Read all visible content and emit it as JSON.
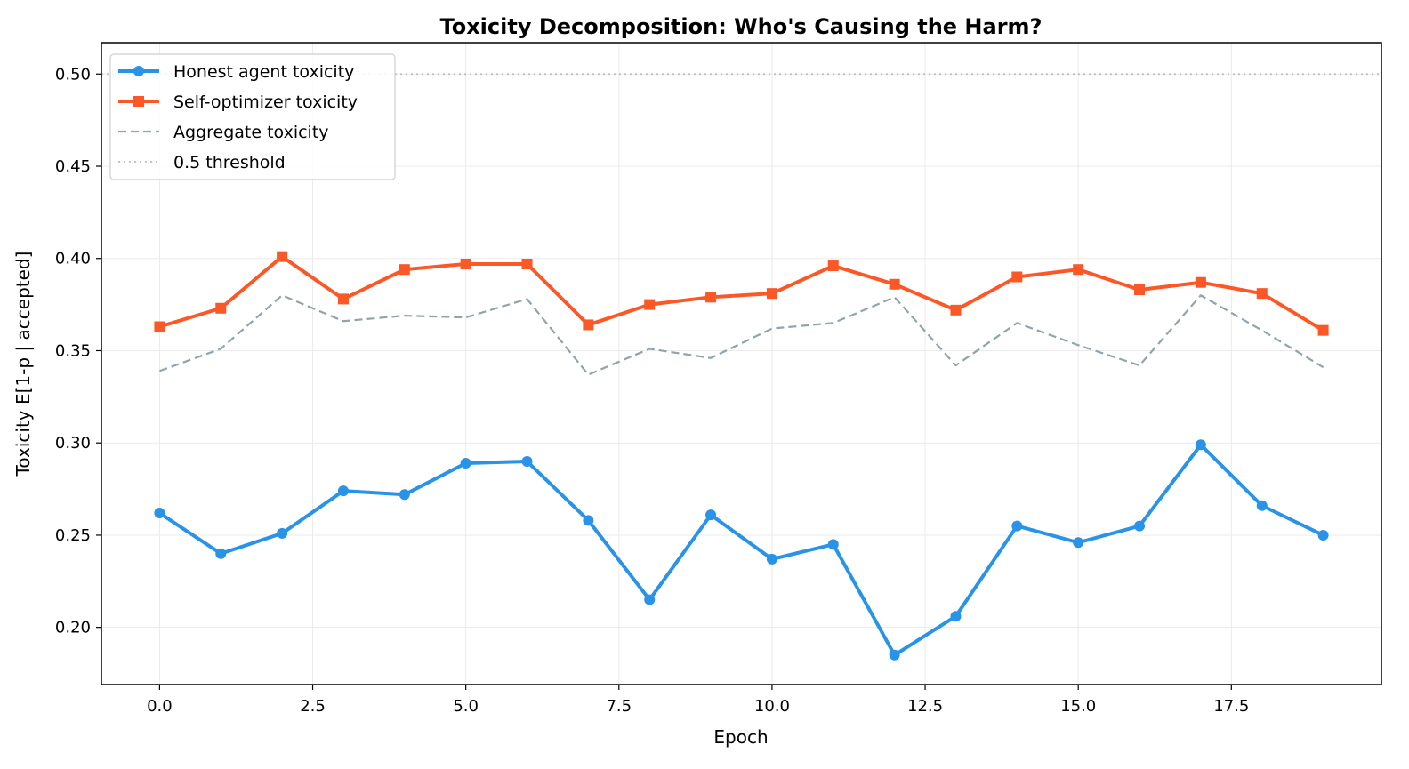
{
  "chart_data": {
    "type": "line",
    "title": "Toxicity Decomposition: Who's Causing the Harm?",
    "xlabel": "Epoch",
    "ylabel": "Toxicity E[1-p | accepted]",
    "xlim": [
      -0.95,
      19.95
    ],
    "ylim": [
      0.169,
      0.517
    ],
    "x_ticks": [
      0.0,
      2.5,
      5.0,
      7.5,
      10.0,
      12.5,
      15.0,
      17.5
    ],
    "x_tick_labels": [
      "0.0",
      "2.5",
      "5.0",
      "7.5",
      "10.0",
      "12.5",
      "15.0",
      "17.5"
    ],
    "y_ticks": [
      0.2,
      0.25,
      0.3,
      0.35,
      0.4,
      0.45,
      0.5
    ],
    "y_tick_labels": [
      "0.20",
      "0.25",
      "0.30",
      "0.35",
      "0.40",
      "0.45",
      "0.50"
    ],
    "grid": true,
    "legend_position": "top-left",
    "x": [
      0,
      1,
      2,
      3,
      4,
      5,
      6,
      7,
      8,
      9,
      10,
      11,
      12,
      13,
      14,
      15,
      16,
      17,
      18,
      19
    ],
    "series": [
      {
        "name": "Honest agent toxicity",
        "color": "#2893e7",
        "marker": "circle",
        "style": "solid",
        "values": [
          0.262,
          0.24,
          0.251,
          0.274,
          0.272,
          0.289,
          0.29,
          0.258,
          0.215,
          0.261,
          0.237,
          0.245,
          0.185,
          0.206,
          0.255,
          0.246,
          0.255,
          0.299,
          0.266,
          0.25
        ]
      },
      {
        "name": "Self-optimizer toxicity",
        "color": "#fc5726",
        "marker": "square",
        "style": "solid",
        "values": [
          0.363,
          0.373,
          0.401,
          0.378,
          0.394,
          0.397,
          0.397,
          0.364,
          0.375,
          0.379,
          0.381,
          0.396,
          0.386,
          0.372,
          0.39,
          0.394,
          0.383,
          0.387,
          0.381,
          0.361
        ]
      },
      {
        "name": "Aggregate toxicity",
        "color": "#90a4ad",
        "marker": "none",
        "style": "dashed",
        "values": [
          0.339,
          0.351,
          0.38,
          0.366,
          0.369,
          0.368,
          0.378,
          0.337,
          0.351,
          0.346,
          0.362,
          0.365,
          0.379,
          0.342,
          0.365,
          0.353,
          0.342,
          0.38,
          0.361,
          0.341
        ]
      },
      {
        "name": "0.5 threshold",
        "color": "#c3c3c3",
        "marker": "none",
        "style": "dotted",
        "constant": 0.5
      }
    ]
  }
}
